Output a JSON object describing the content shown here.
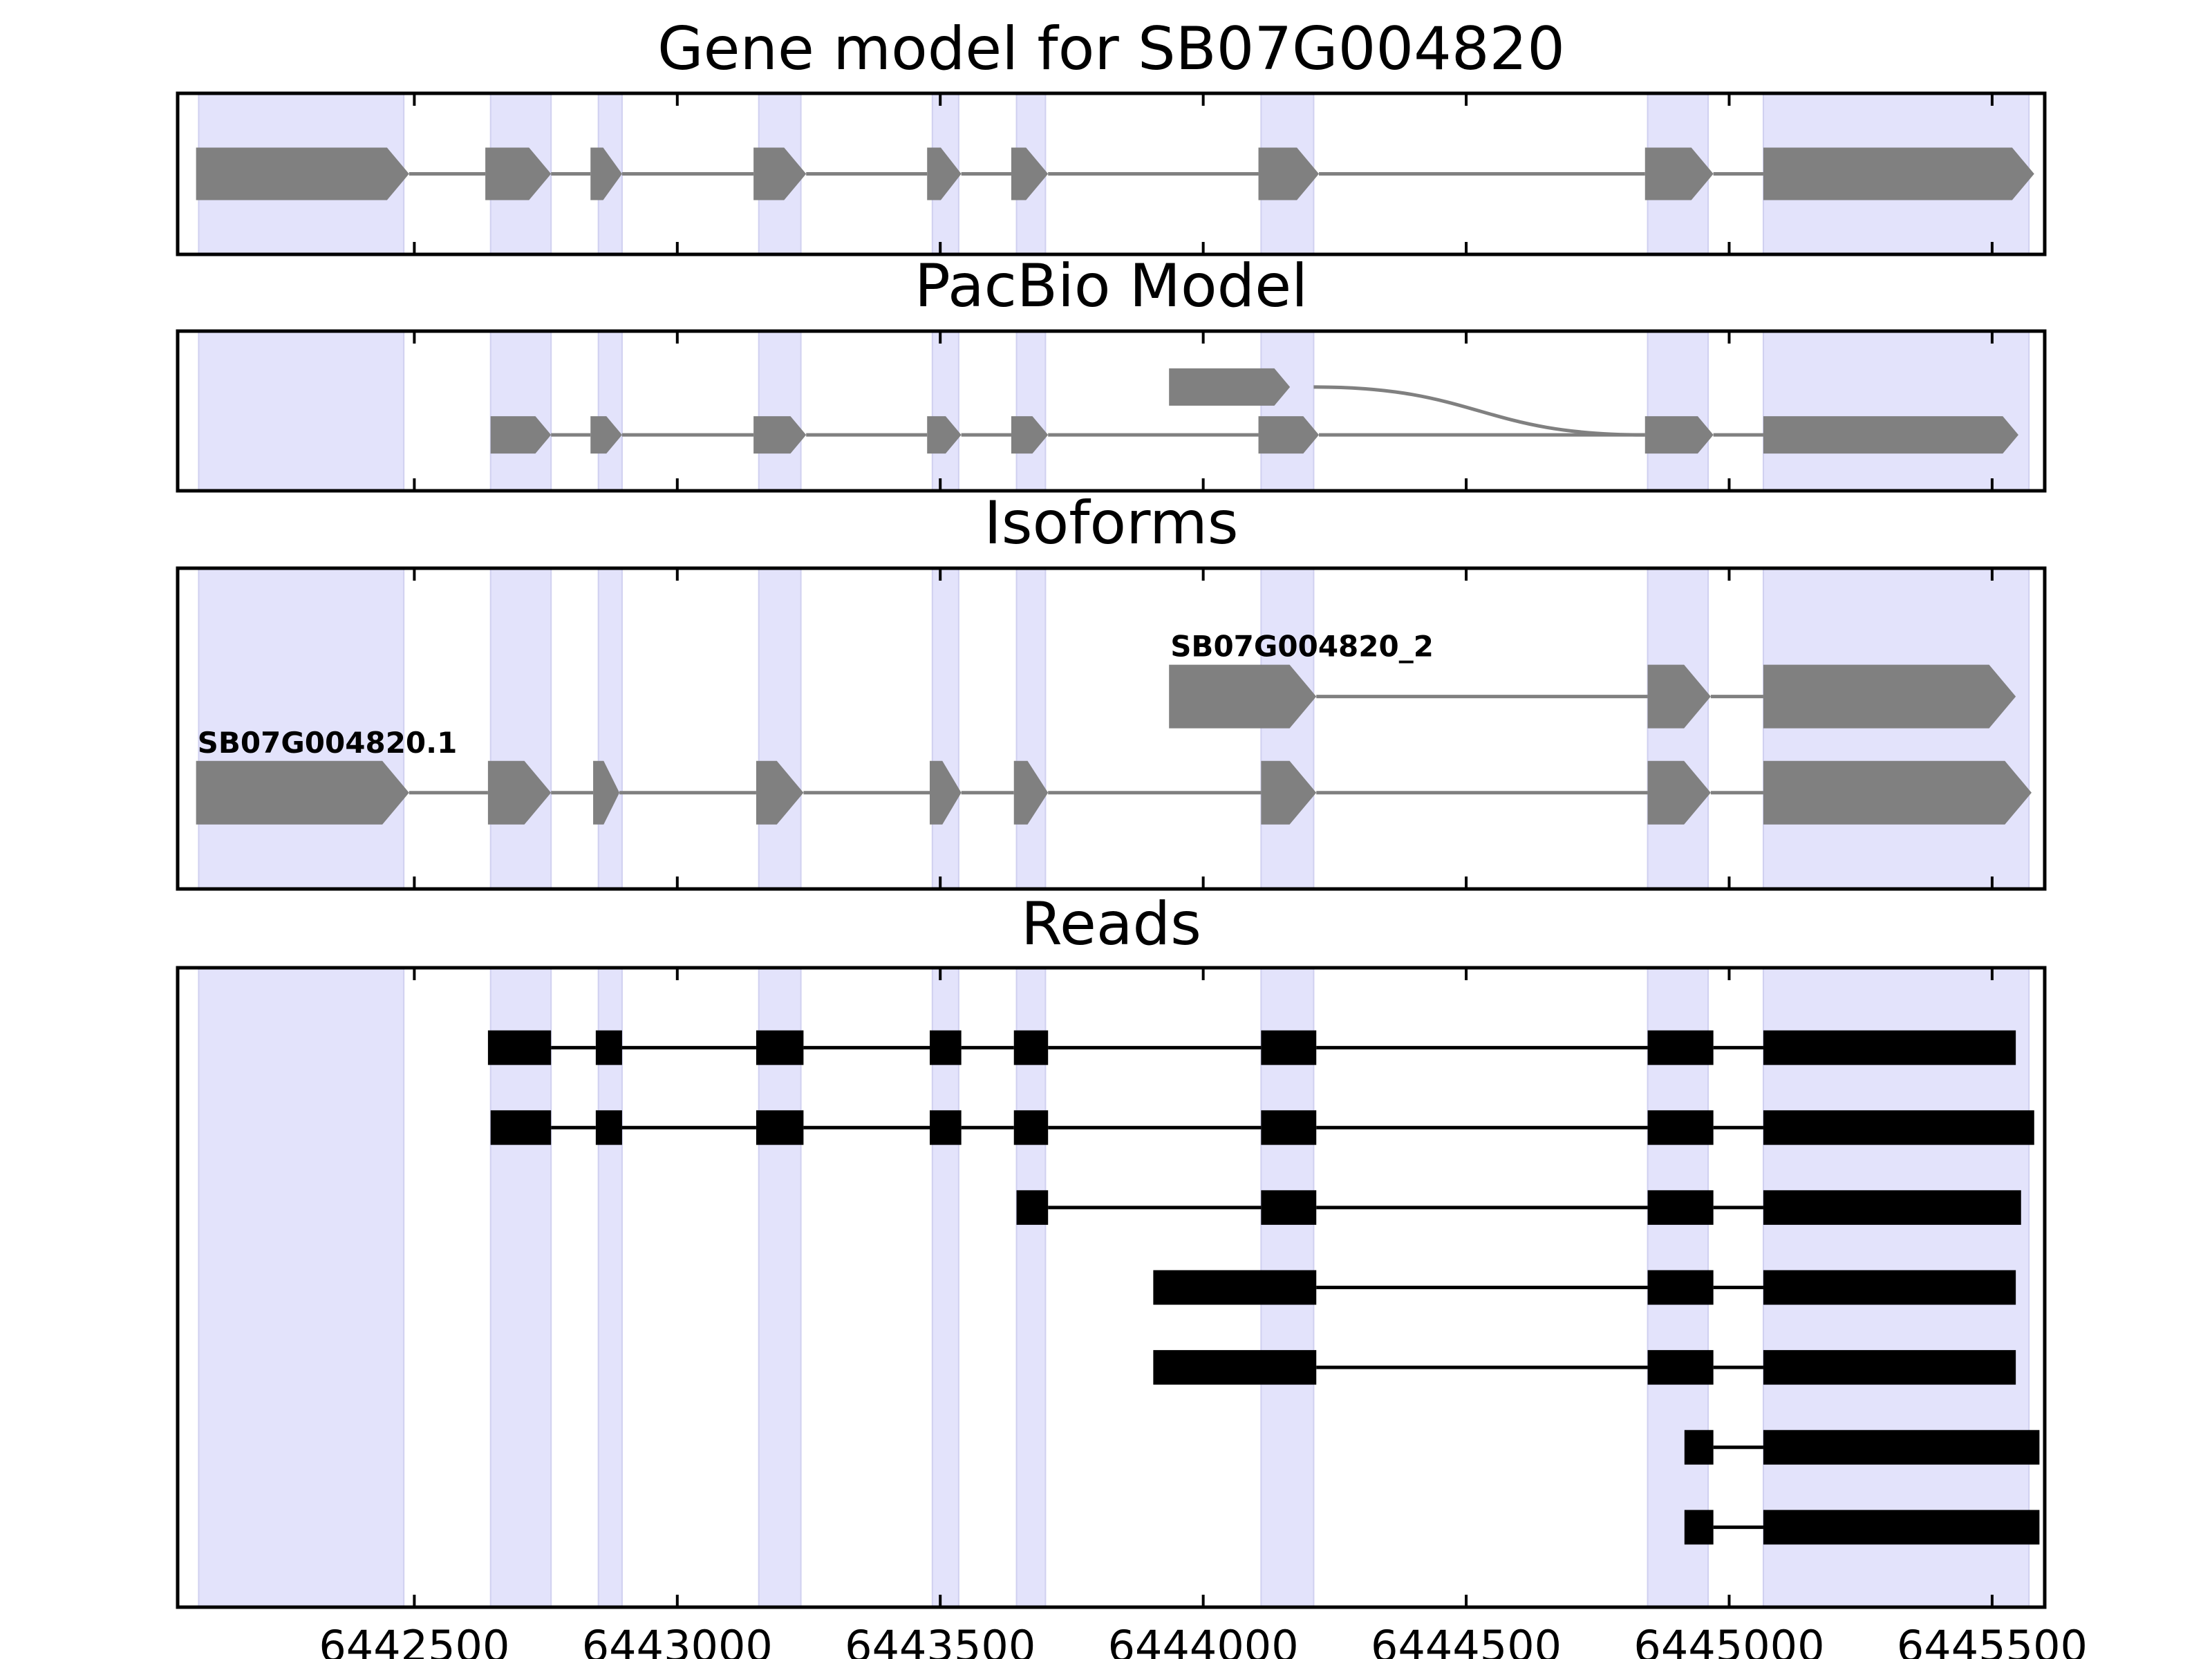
{
  "chart_data": {
    "type": "gene-structure",
    "x_range": [
      6442050,
      6445600
    ],
    "x_ticks": [
      6442500,
      6443000,
      6443500,
      6444000,
      6444500,
      6445000,
      6445500
    ],
    "x_tick_labels": [
      "6442500",
      "6443000",
      "6443500",
      "6444000",
      "6444500",
      "6445000",
      "6445500"
    ],
    "colors": {
      "exon_shade": "#e3e3fb",
      "feature": "#808080",
      "read": "#000000"
    },
    "shaded_exons": [
      [
        6442090,
        6442480
      ],
      [
        6442645,
        6442760
      ],
      [
        6442850,
        6442895
      ],
      [
        6443155,
        6443235
      ],
      [
        6443485,
        6443535
      ],
      [
        6443645,
        6443700
      ],
      [
        6444110,
        6444210
      ],
      [
        6444845,
        6444960
      ],
      [
        6445065,
        6445570
      ]
    ],
    "panels": [
      {
        "title": "Gene model for SB07G004820",
        "style": "gene",
        "tracks": [
          {
            "label": "",
            "lane": 0.5,
            "exons": [
              [
                6442085,
                6442490
              ],
              [
                6442635,
                6442760
              ],
              [
                6442835,
                6442895
              ],
              [
                6443145,
                6443245
              ],
              [
                6443475,
                6443540
              ],
              [
                6443635,
                6443705
              ],
              [
                6444105,
                6444220
              ],
              [
                6444840,
                6444970
              ],
              [
                6445065,
                6445580
              ]
            ]
          }
        ]
      },
      {
        "title": "PacBio Model",
        "style": "gene",
        "tracks": [
          {
            "label": "",
            "lane": 0.65,
            "exons": [
              [
                6443935,
                6444165
              ]
            ]
          },
          {
            "label": "",
            "lane": 0.35,
            "exons": [
              [
                6442645,
                6442760
              ],
              [
                6442835,
                6442895
              ],
              [
                6443145,
                6443245
              ],
              [
                6443475,
                6443540
              ],
              [
                6443635,
                6443705
              ],
              [
                6444105,
                6444220
              ],
              [
                6444840,
                6444970
              ],
              [
                6445065,
                6445550
              ]
            ]
          }
        ],
        "curved_join": {
          "from": 6444210,
          "to": 6444840,
          "from_lane": 0.65,
          "to_lane": 0.35
        }
      },
      {
        "title": "Isoforms",
        "style": "gene",
        "tracks": [
          {
            "label": "SB07G004820_2",
            "lane": 0.6,
            "exons": [
              [
                6443935,
                6444215
              ],
              [
                6444845,
                6444965
              ],
              [
                6445065,
                6445545
              ]
            ]
          },
          {
            "label": "SB07G004820.1",
            "lane": 0.3,
            "exons": [
              [
                6442085,
                6442490
              ],
              [
                6442640,
                6442760
              ],
              [
                6442840,
                6442890
              ],
              [
                6443150,
                6443240
              ],
              [
                6443480,
                6443540
              ],
              [
                6443640,
                6443705
              ],
              [
                6444110,
                6444215
              ],
              [
                6444845,
                6444965
              ],
              [
                6445065,
                6445575
              ]
            ]
          }
        ]
      },
      {
        "title": "Reads",
        "style": "read",
        "tracks": [
          {
            "label": "",
            "lane": 0.875,
            "exons": [
              [
                6442640,
                6442760
              ],
              [
                6442845,
                6442895
              ],
              [
                6443150,
                6443240
              ],
              [
                6443480,
                6443540
              ],
              [
                6443640,
                6443705
              ],
              [
                6444110,
                6444215
              ],
              [
                6444845,
                6444970
              ],
              [
                6445065,
                6445545
              ]
            ]
          },
          {
            "label": "",
            "lane": 0.75,
            "exons": [
              [
                6442645,
                6442760
              ],
              [
                6442845,
                6442895
              ],
              [
                6443150,
                6443240
              ],
              [
                6443480,
                6443540
              ],
              [
                6443640,
                6443705
              ],
              [
                6444110,
                6444215
              ],
              [
                6444845,
                6444970
              ],
              [
                6445065,
                6445580
              ]
            ]
          },
          {
            "label": "",
            "lane": 0.625,
            "exons": [
              [
                6443645,
                6443705
              ],
              [
                6444110,
                6444215
              ],
              [
                6444845,
                6444970
              ],
              [
                6445065,
                6445555
              ]
            ]
          },
          {
            "label": "",
            "lane": 0.5,
            "exons": [
              [
                6443905,
                6444215
              ],
              [
                6444845,
                6444970
              ],
              [
                6445065,
                6445545
              ]
            ]
          },
          {
            "label": "",
            "lane": 0.375,
            "exons": [
              [
                6443905,
                6444215
              ],
              [
                6444845,
                6444970
              ],
              [
                6445065,
                6445545
              ]
            ]
          },
          {
            "label": "",
            "lane": 0.25,
            "exons": [
              [
                6444915,
                6444970
              ],
              [
                6445065,
                6445590
              ]
            ]
          },
          {
            "label": "",
            "lane": 0.125,
            "exons": [
              [
                6444915,
                6444970
              ],
              [
                6445065,
                6445590
              ]
            ]
          }
        ]
      }
    ]
  }
}
